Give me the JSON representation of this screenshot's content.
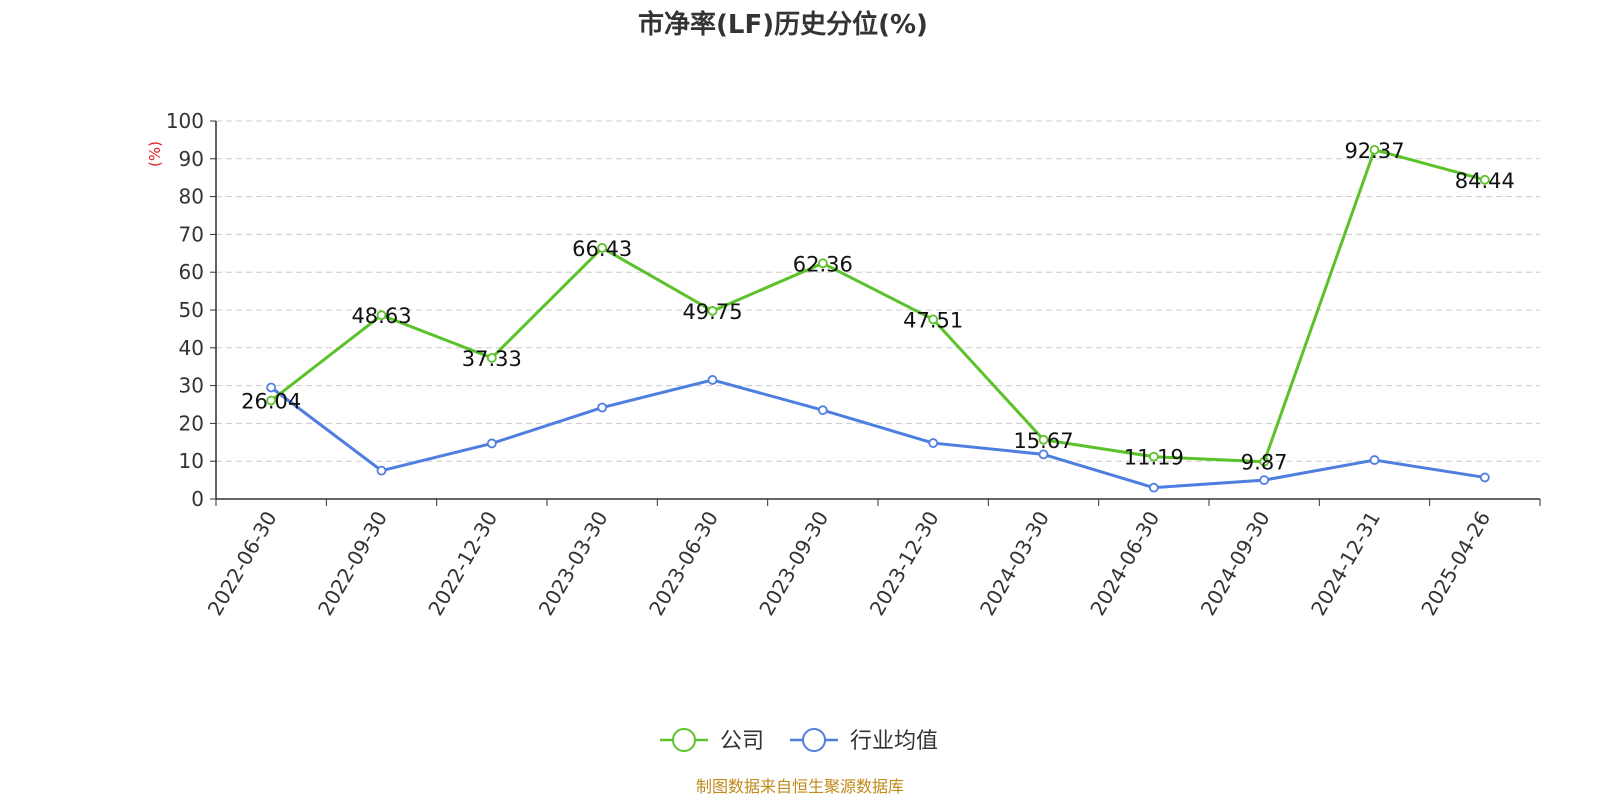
{
  "chart_data": {
    "type": "line",
    "title": "市净率(LF)历史分位(%)",
    "ylabel": "(%)",
    "ylim": [
      0,
      100
    ],
    "yticks": [
      0,
      10,
      20,
      30,
      40,
      50,
      60,
      70,
      80,
      90,
      100
    ],
    "grid": true,
    "legend_position": "bottom",
    "categories": [
      "2022-06-30",
      "2022-09-30",
      "2022-12-30",
      "2023-03-30",
      "2023-06-30",
      "2023-09-30",
      "2023-12-30",
      "2024-03-30",
      "2024-06-30",
      "2024-09-30",
      "2024-12-31",
      "2025-04-26"
    ],
    "series": [
      {
        "name": "公司",
        "color": "#5cc22a",
        "values": [
          26.04,
          48.63,
          37.33,
          66.43,
          49.75,
          62.36,
          47.51,
          15.67,
          11.19,
          9.87,
          92.37,
          84.44
        ],
        "labels": [
          "26.04",
          "48.63",
          "37.33",
          "66.43",
          "49.75",
          "62.36",
          "47.51",
          "15.67",
          "11.19",
          "9.87",
          "92.37",
          "84.44"
        ]
      },
      {
        "name": "行业均值",
        "color": "#4e7ee0",
        "values": [
          29.5,
          7.5,
          14.7,
          24.2,
          31.5,
          23.5,
          14.8,
          11.8,
          3.0,
          5.0,
          10.3,
          5.7
        ]
      }
    ],
    "source": "制图数据来自恒生聚源数据库"
  },
  "style": {
    "ylabel_color": "#e02020",
    "source_color": "#c08a1a",
    "grid_color": "#cccccc",
    "axis_color": "#333333"
  }
}
